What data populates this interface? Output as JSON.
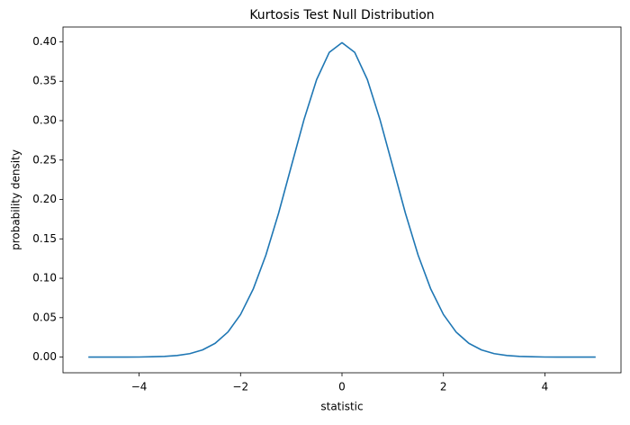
{
  "chart_data": {
    "type": "line",
    "title": "Kurtosis Test Null Distribution",
    "xlabel": "statistic",
    "ylabel": "probability density",
    "x": [
      -5,
      -4.75,
      -4.5,
      -4.25,
      -4,
      -3.75,
      -3.5,
      -3.25,
      -3,
      -2.75,
      -2.5,
      -2.25,
      -2,
      -1.75,
      -1.5,
      -1.25,
      -1,
      -0.75,
      -0.5,
      -0.25,
      0,
      0.25,
      0.5,
      0.75,
      1,
      1.25,
      1.5,
      1.75,
      2,
      2.25,
      2.5,
      2.75,
      3,
      3.25,
      3.5,
      3.75,
      4,
      4.25,
      4.5,
      4.75,
      5
    ],
    "series": [
      {
        "color": "#1f77b4",
        "values": [
          0,
          0,
          0,
          0,
          0.0001,
          0.0004,
          0.0009,
          0.002,
          0.0044,
          0.0091,
          0.0175,
          0.0317,
          0.054,
          0.0863,
          0.1295,
          0.1826,
          0.242,
          0.3011,
          0.3521,
          0.3867,
          0.3989,
          0.3867,
          0.3521,
          0.3011,
          0.242,
          0.1826,
          0.1295,
          0.0863,
          0.054,
          0.0317,
          0.0175,
          0.0091,
          0.0044,
          0.002,
          0.0009,
          0.0004,
          0.0001,
          0,
          0,
          0,
          0
        ]
      }
    ],
    "xlim": [
      -5.5,
      5.5
    ],
    "ylim": [
      -0.0199,
      0.4188
    ],
    "xticks": [
      {
        "value": -4,
        "label": "−4"
      },
      {
        "value": -2,
        "label": "−2"
      },
      0,
      2,
      4
    ],
    "yticks": [
      {
        "value": 0,
        "label": "0.00"
      },
      {
        "value": 0.05,
        "label": "0.05"
      },
      {
        "value": 0.1,
        "label": "0.10"
      },
      {
        "value": 0.15,
        "label": "0.15"
      },
      {
        "value": 0.2,
        "label": "0.20"
      },
      {
        "value": 0.25,
        "label": "0.25"
      },
      {
        "value": 0.3,
        "label": "0.30"
      },
      {
        "value": 0.35,
        "label": "0.35"
      },
      {
        "value": 0.4,
        "label": "0.40"
      }
    ],
    "grid": false
  }
}
